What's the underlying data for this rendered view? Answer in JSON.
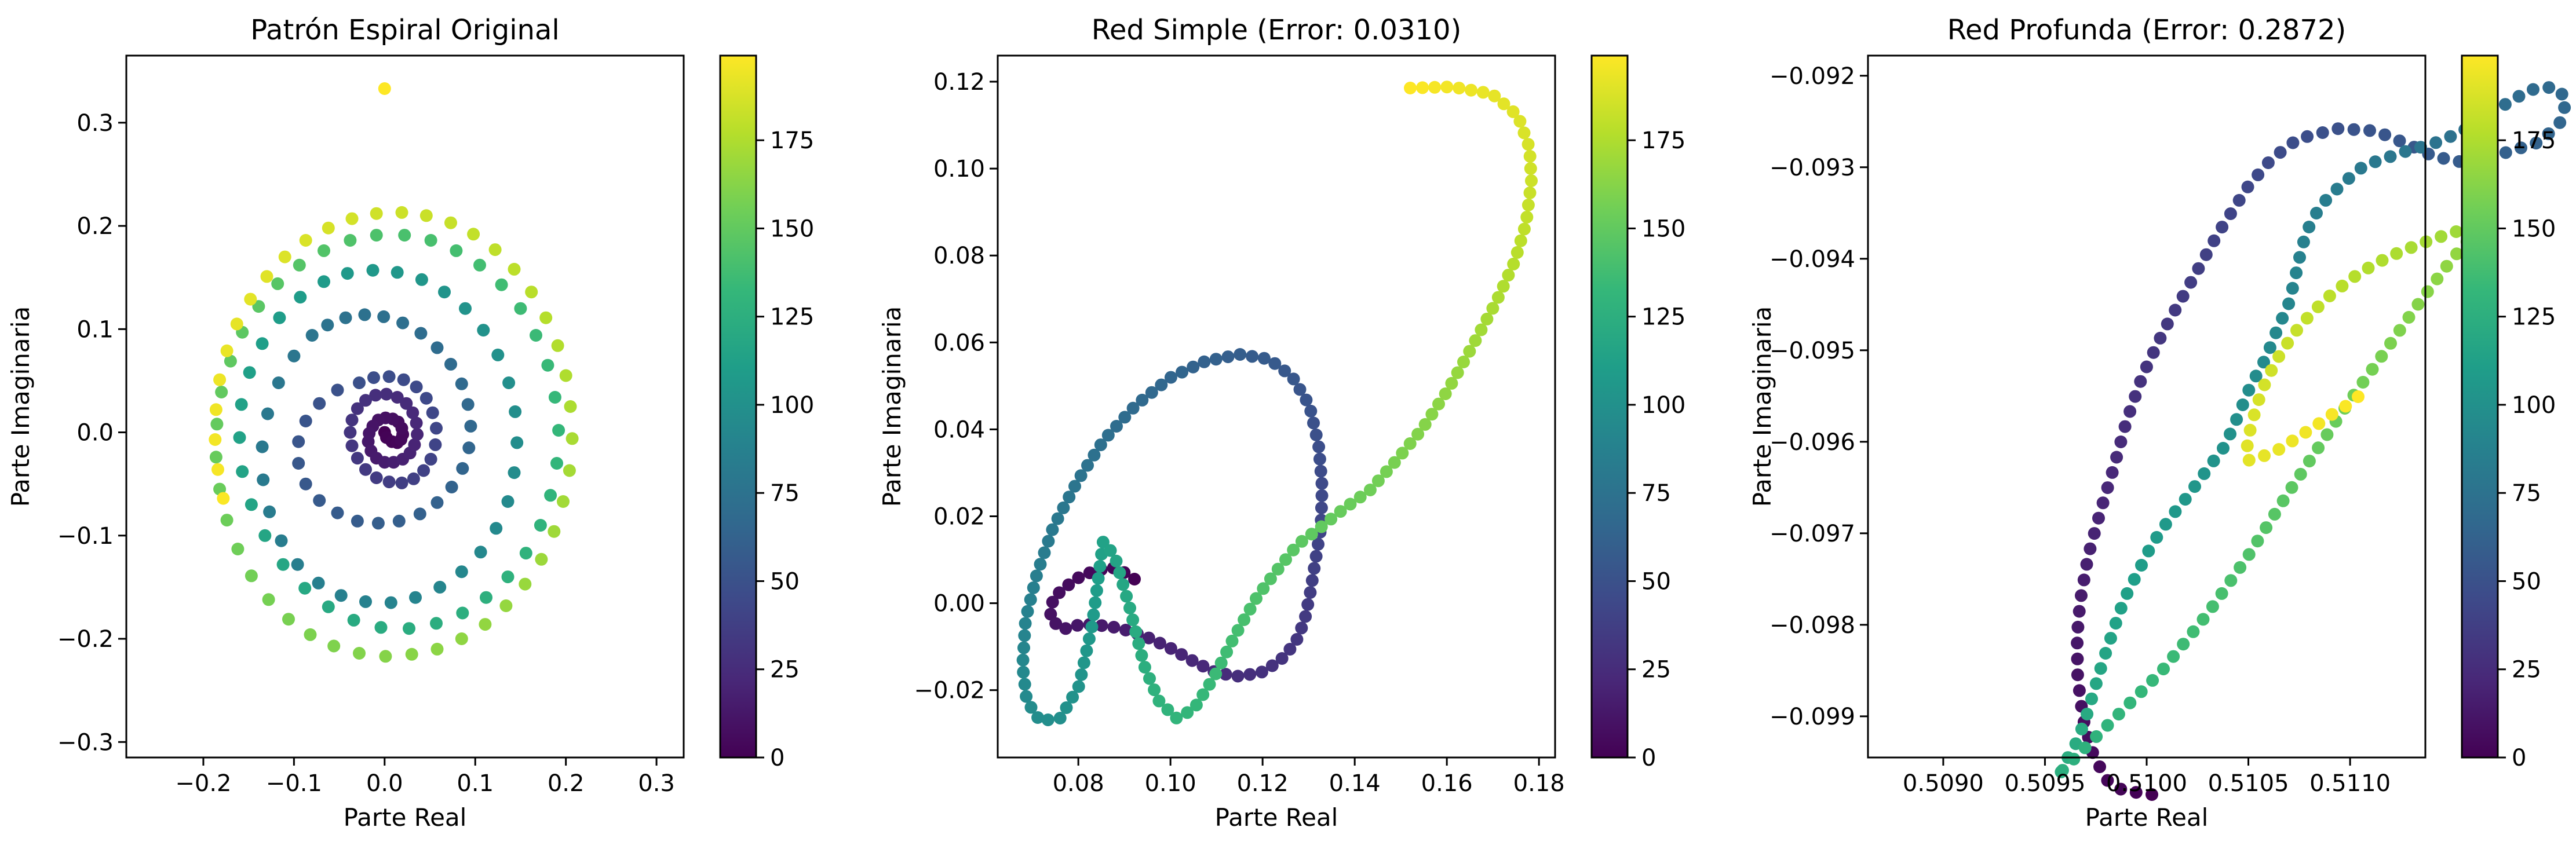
{
  "colormap": {
    "name": "viridis",
    "stops": [
      "#440154",
      "#482878",
      "#3e4989",
      "#31688e",
      "#26828e",
      "#1f9e89",
      "#35b779",
      "#6ece58",
      "#b5de2b",
      "#fde725"
    ],
    "range": [
      0,
      199
    ]
  },
  "chart_data": [
    {
      "type": "scatter",
      "title": "Patrón Espiral Original",
      "xlabel": "Parte Real",
      "ylabel": "Parte Imaginaria",
      "xlim": [
        -0.285,
        0.33
      ],
      "ylim": [
        -0.315,
        0.365
      ],
      "xticks": [
        -0.2,
        -0.1,
        0.0,
        0.1,
        0.2,
        0.3
      ],
      "yticks": [
        -0.3,
        -0.2,
        -0.1,
        0.0,
        0.1,
        0.2,
        0.3
      ],
      "xtick_labels": [
        "−0.2",
        "−0.1",
        "0.0",
        "0.1",
        "0.2",
        "0.3"
      ],
      "ytick_labels": [
        "−0.3",
        "−0.2",
        "−0.1",
        "0.0",
        "0.1",
        "0.2",
        "0.3"
      ],
      "colorbar": {
        "ticks": [
          0,
          25,
          50,
          75,
          100,
          125,
          150,
          175
        ],
        "labels": [
          "0",
          "25",
          "50",
          "75",
          "100",
          "125",
          "150",
          "175"
        ]
      },
      "color_by": "point index (0–199)",
      "points": [
        [
          0.0,
          0.0
        ],
        [
          0.002,
          -0.005
        ],
        [
          0.008,
          -0.009
        ],
        [
          0.014,
          -0.01
        ],
        [
          0.018,
          -0.007
        ],
        [
          0.02,
          -0.002
        ],
        [
          0.019,
          0.004
        ],
        [
          0.015,
          0.01
        ],
        [
          0.009,
          0.013
        ],
        [
          0.001,
          0.014
        ],
        [
          -0.007,
          0.012
        ],
        [
          -0.013,
          0.006
        ],
        [
          -0.017,
          -0.001
        ],
        [
          -0.018,
          -0.009
        ],
        [
          -0.015,
          -0.018
        ],
        [
          -0.009,
          -0.025
        ],
        [
          0.0,
          -0.029
        ],
        [
          0.01,
          -0.029
        ],
        [
          0.02,
          -0.026
        ],
        [
          0.028,
          -0.02
        ],
        [
          0.033,
          -0.012
        ],
        [
          0.036,
          -0.002
        ],
        [
          0.035,
          0.009
        ],
        [
          0.031,
          0.019
        ],
        [
          0.024,
          0.028
        ],
        [
          0.014,
          0.034
        ],
        [
          0.002,
          0.037
        ],
        [
          -0.01,
          0.036
        ],
        [
          -0.021,
          0.031
        ],
        [
          -0.03,
          0.023
        ],
        [
          -0.036,
          0.012
        ],
        [
          -0.038,
          0.0
        ],
        [
          -0.036,
          -0.013
        ],
        [
          -0.03,
          -0.025
        ],
        [
          -0.021,
          -0.036
        ],
        [
          -0.009,
          -0.044
        ],
        [
          0.005,
          -0.048
        ],
        [
          0.019,
          -0.049
        ],
        [
          0.032,
          -0.045
        ],
        [
          0.043,
          -0.037
        ],
        [
          0.051,
          -0.026
        ],
        [
          0.056,
          -0.012
        ],
        [
          0.057,
          0.004
        ],
        [
          0.053,
          0.019
        ],
        [
          0.046,
          0.033
        ],
        [
          0.035,
          0.044
        ],
        [
          0.021,
          0.051
        ],
        [
          0.005,
          0.054
        ],
        [
          -0.012,
          0.053
        ],
        [
          -0.028,
          0.048
        ],
        [
          -0.052,
          0.041
        ],
        [
          -0.072,
          0.028
        ],
        [
          -0.087,
          0.011
        ],
        [
          -0.095,
          -0.009
        ],
        [
          -0.095,
          -0.03
        ],
        [
          -0.087,
          -0.05
        ],
        [
          -0.072,
          -0.066
        ],
        [
          -0.052,
          -0.078
        ],
        [
          -0.03,
          -0.086
        ],
        [
          -0.007,
          -0.088
        ],
        [
          0.016,
          -0.086
        ],
        [
          0.039,
          -0.079
        ],
        [
          0.058,
          -0.068
        ],
        [
          0.074,
          -0.053
        ],
        [
          0.086,
          -0.035
        ],
        [
          0.093,
          -0.015
        ],
        [
          0.095,
          0.006
        ],
        [
          0.092,
          0.027
        ],
        [
          0.085,
          0.047
        ],
        [
          0.073,
          0.066
        ],
        [
          0.058,
          0.082
        ],
        [
          0.04,
          0.096
        ],
        [
          0.02,
          0.106
        ],
        [
          -0.001,
          0.112
        ],
        [
          -0.022,
          0.114
        ],
        [
          -0.043,
          0.111
        ],
        [
          -0.063,
          0.104
        ],
        [
          -0.08,
          0.094
        ],
        [
          -0.1,
          0.074
        ],
        [
          -0.117,
          0.048
        ],
        [
          -0.129,
          0.018
        ],
        [
          -0.135,
          -0.014
        ],
        [
          -0.134,
          -0.046
        ],
        [
          -0.127,
          -0.077
        ],
        [
          -0.114,
          -0.105
        ],
        [
          -0.096,
          -0.128
        ],
        [
          -0.073,
          -0.146
        ],
        [
          -0.048,
          -0.158
        ],
        [
          -0.021,
          -0.164
        ],
        [
          0.007,
          -0.165
        ],
        [
          0.034,
          -0.16
        ],
        [
          0.061,
          -0.15
        ],
        [
          0.085,
          -0.135
        ],
        [
          0.106,
          -0.116
        ],
        [
          0.123,
          -0.093
        ],
        [
          0.136,
          -0.067
        ],
        [
          0.143,
          -0.039
        ],
        [
          0.146,
          -0.01
        ],
        [
          0.144,
          0.02
        ],
        [
          0.137,
          0.048
        ],
        [
          0.125,
          0.075
        ],
        [
          0.109,
          0.099
        ],
        [
          0.089,
          0.12
        ],
        [
          0.066,
          0.136
        ],
        [
          0.041,
          0.148
        ],
        [
          0.014,
          0.155
        ],
        [
          -0.013,
          0.157
        ],
        [
          -0.041,
          0.154
        ],
        [
          -0.067,
          0.146
        ],
        [
          -0.093,
          0.131
        ],
        [
          -0.116,
          0.111
        ],
        [
          -0.135,
          0.086
        ],
        [
          -0.149,
          0.058
        ],
        [
          -0.158,
          0.027
        ],
        [
          -0.16,
          -0.005
        ],
        [
          -0.157,
          -0.038
        ],
        [
          -0.147,
          -0.07
        ],
        [
          -0.132,
          -0.1
        ],
        [
          -0.112,
          -0.128
        ],
        [
          -0.088,
          -0.151
        ],
        [
          -0.062,
          -0.169
        ],
        [
          -0.034,
          -0.182
        ],
        [
          -0.004,
          -0.189
        ],
        [
          0.027,
          -0.19
        ],
        [
          0.057,
          -0.185
        ],
        [
          0.086,
          -0.175
        ],
        [
          0.112,
          -0.16
        ],
        [
          0.136,
          -0.14
        ],
        [
          0.156,
          -0.117
        ],
        [
          0.172,
          -0.09
        ],
        [
          0.183,
          -0.061
        ],
        [
          0.19,
          -0.03
        ],
        [
          0.192,
          0.002
        ],
        [
          0.188,
          0.034
        ],
        [
          0.18,
          0.065
        ],
        [
          0.167,
          0.094
        ],
        [
          0.15,
          0.12
        ],
        [
          0.129,
          0.143
        ],
        [
          0.105,
          0.162
        ],
        [
          0.079,
          0.176
        ],
        [
          0.051,
          0.186
        ],
        [
          0.022,
          0.191
        ],
        [
          -0.009,
          0.191
        ],
        [
          -0.038,
          0.186
        ],
        [
          -0.067,
          0.176
        ],
        [
          -0.094,
          0.162
        ],
        [
          -0.118,
          0.144
        ],
        [
          -0.139,
          0.122
        ],
        [
          -0.157,
          0.097
        ],
        [
          -0.17,
          0.069
        ],
        [
          -0.18,
          0.039
        ],
        [
          -0.185,
          0.008
        ],
        [
          -0.186,
          -0.024
        ],
        [
          -0.182,
          -0.055
        ],
        [
          -0.174,
          -0.085
        ],
        [
          -0.162,
          -0.113
        ],
        [
          -0.147,
          -0.139
        ],
        [
          -0.128,
          -0.162
        ],
        [
          -0.106,
          -0.181
        ],
        [
          -0.082,
          -0.196
        ],
        [
          -0.056,
          -0.207
        ],
        [
          -0.028,
          -0.214
        ],
        [
          0.001,
          -0.217
        ],
        [
          0.03,
          -0.215
        ],
        [
          0.058,
          -0.21
        ],
        [
          0.085,
          -0.2
        ],
        [
          0.111,
          -0.186
        ],
        [
          0.134,
          -0.168
        ],
        [
          0.155,
          -0.147
        ],
        [
          0.173,
          -0.123
        ],
        [
          0.187,
          -0.096
        ],
        [
          0.197,
          -0.067
        ],
        [
          0.204,
          -0.037
        ],
        [
          0.207,
          -0.006
        ],
        [
          0.205,
          0.025
        ],
        [
          0.2,
          0.055
        ],
        [
          0.191,
          0.084
        ],
        [
          0.178,
          0.111
        ],
        [
          0.162,
          0.136
        ],
        [
          0.143,
          0.158
        ],
        [
          0.122,
          0.177
        ],
        [
          0.098,
          0.192
        ],
        [
          0.073,
          0.203
        ],
        [
          0.046,
          0.21
        ],
        [
          0.019,
          0.213
        ],
        [
          -0.009,
          0.212
        ],
        [
          -0.036,
          0.207
        ],
        [
          -0.062,
          0.198
        ],
        [
          -0.087,
          0.186
        ],
        [
          -0.11,
          0.17
        ],
        [
          -0.13,
          0.151
        ],
        [
          -0.148,
          0.129
        ],
        [
          -0.163,
          0.105
        ],
        [
          -0.174,
          0.079
        ],
        [
          -0.182,
          0.051
        ],
        [
          -0.186,
          0.022
        ],
        [
          -0.187,
          -0.007
        ],
        [
          -0.184,
          -0.036
        ],
        [
          -0.178,
          -0.064
        ],
        [
          0.0,
          0.333
        ]
      ]
    },
    {
      "type": "scatter",
      "title": "Red Simple (Error: 0.0310)",
      "xlabel": "Parte Real",
      "ylabel": "Parte Imaginaria",
      "xlim": [
        0.0625,
        0.1835
      ],
      "ylim": [
        -0.0355,
        0.126
      ],
      "xticks": [
        0.08,
        0.1,
        0.12,
        0.14,
        0.16,
        0.18
      ],
      "yticks": [
        -0.02,
        0.0,
        0.02,
        0.04,
        0.06,
        0.08,
        0.1,
        0.12
      ],
      "xtick_labels": [
        "0.08",
        "0.10",
        "0.12",
        "0.14",
        "0.16",
        "0.18"
      ],
      "ytick_labels": [
        "−0.02",
        "0.00",
        "0.02",
        "0.04",
        "0.06",
        "0.08",
        "0.10",
        "0.12"
      ],
      "colorbar": {
        "ticks": [
          0,
          25,
          50,
          75,
          100,
          125,
          150,
          175
        ],
        "labels": [
          "0",
          "25",
          "50",
          "75",
          "100",
          "125",
          "150",
          "175"
        ]
      },
      "color_by": "point index (0–199)"
    },
    {
      "type": "scatter",
      "title": "Red Profunda (Error: 0.2872)",
      "xlabel": "Parte Real",
      "ylabel": "Parte Imaginaria",
      "xlim": [
        0.50863,
        0.51137
      ],
      "ylim": [
        -0.09945,
        -0.09178
      ],
      "xticks": [
        0.509,
        0.5095,
        0.51,
        0.5105,
        0.511
      ],
      "yticks": [
        -0.099,
        -0.098,
        -0.097,
        -0.096,
        -0.095,
        -0.094,
        -0.093,
        -0.092
      ],
      "xtick_labels": [
        "0.5090",
        "0.5095",
        "0.5100",
        "0.5105",
        "0.5110"
      ],
      "ytick_labels": [
        "−0.099",
        "−0.098",
        "−0.097",
        "−0.096",
        "−0.095",
        "−0.094",
        "−0.093",
        "−0.092"
      ],
      "colorbar": {
        "ticks": [
          0,
          25,
          50,
          75,
          100,
          125,
          150,
          175
        ],
        "labels": [
          "0",
          "25",
          "50",
          "75",
          "100",
          "125",
          "150",
          "175"
        ]
      },
      "color_by": "point index (0–199)"
    }
  ]
}
